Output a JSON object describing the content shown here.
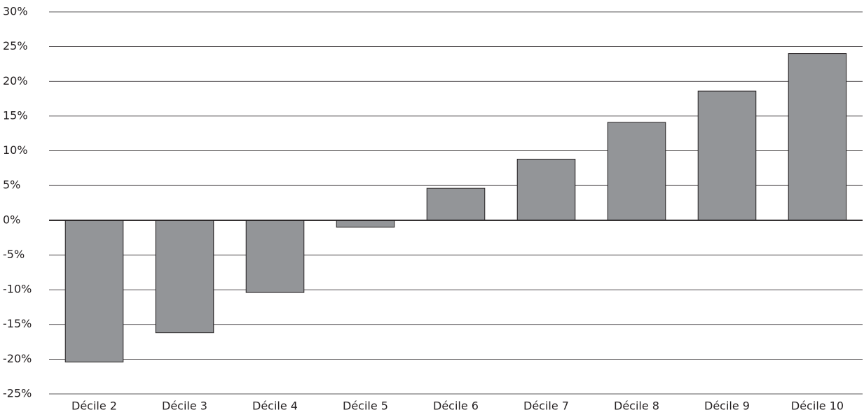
{
  "chart_data": {
    "type": "bar",
    "categories": [
      "Décile 2",
      "Décile 3",
      "Décile 4",
      "Décile 5",
      "Décile 6",
      "Décile 7",
      "Décile 8",
      "Décile 9",
      "Décile 10"
    ],
    "values": [
      -20.4,
      -16.2,
      -10.4,
      -1.0,
      4.6,
      8.8,
      14.1,
      18.6,
      24.0
    ],
    "color": "#939598",
    "ylim": [
      -25,
      30
    ],
    "yticks": [
      {
        "value": -25,
        "label": "-25%"
      },
      {
        "value": -20,
        "label": "-20%"
      },
      {
        "value": -15,
        "label": "-15%"
      },
      {
        "value": -10,
        "label": "-10%"
      },
      {
        "value": -5,
        "label": "-5%"
      },
      {
        "value": 0,
        "label": "0%"
      },
      {
        "value": 5,
        "label": "5%"
      },
      {
        "value": 10,
        "label": "10%"
      },
      {
        "value": 15,
        "label": "15%"
      },
      {
        "value": 20,
        "label": "20%"
      },
      {
        "value": 25,
        "label": "25%"
      },
      {
        "value": 30,
        "label": "30%"
      }
    ],
    "grid": true
  }
}
